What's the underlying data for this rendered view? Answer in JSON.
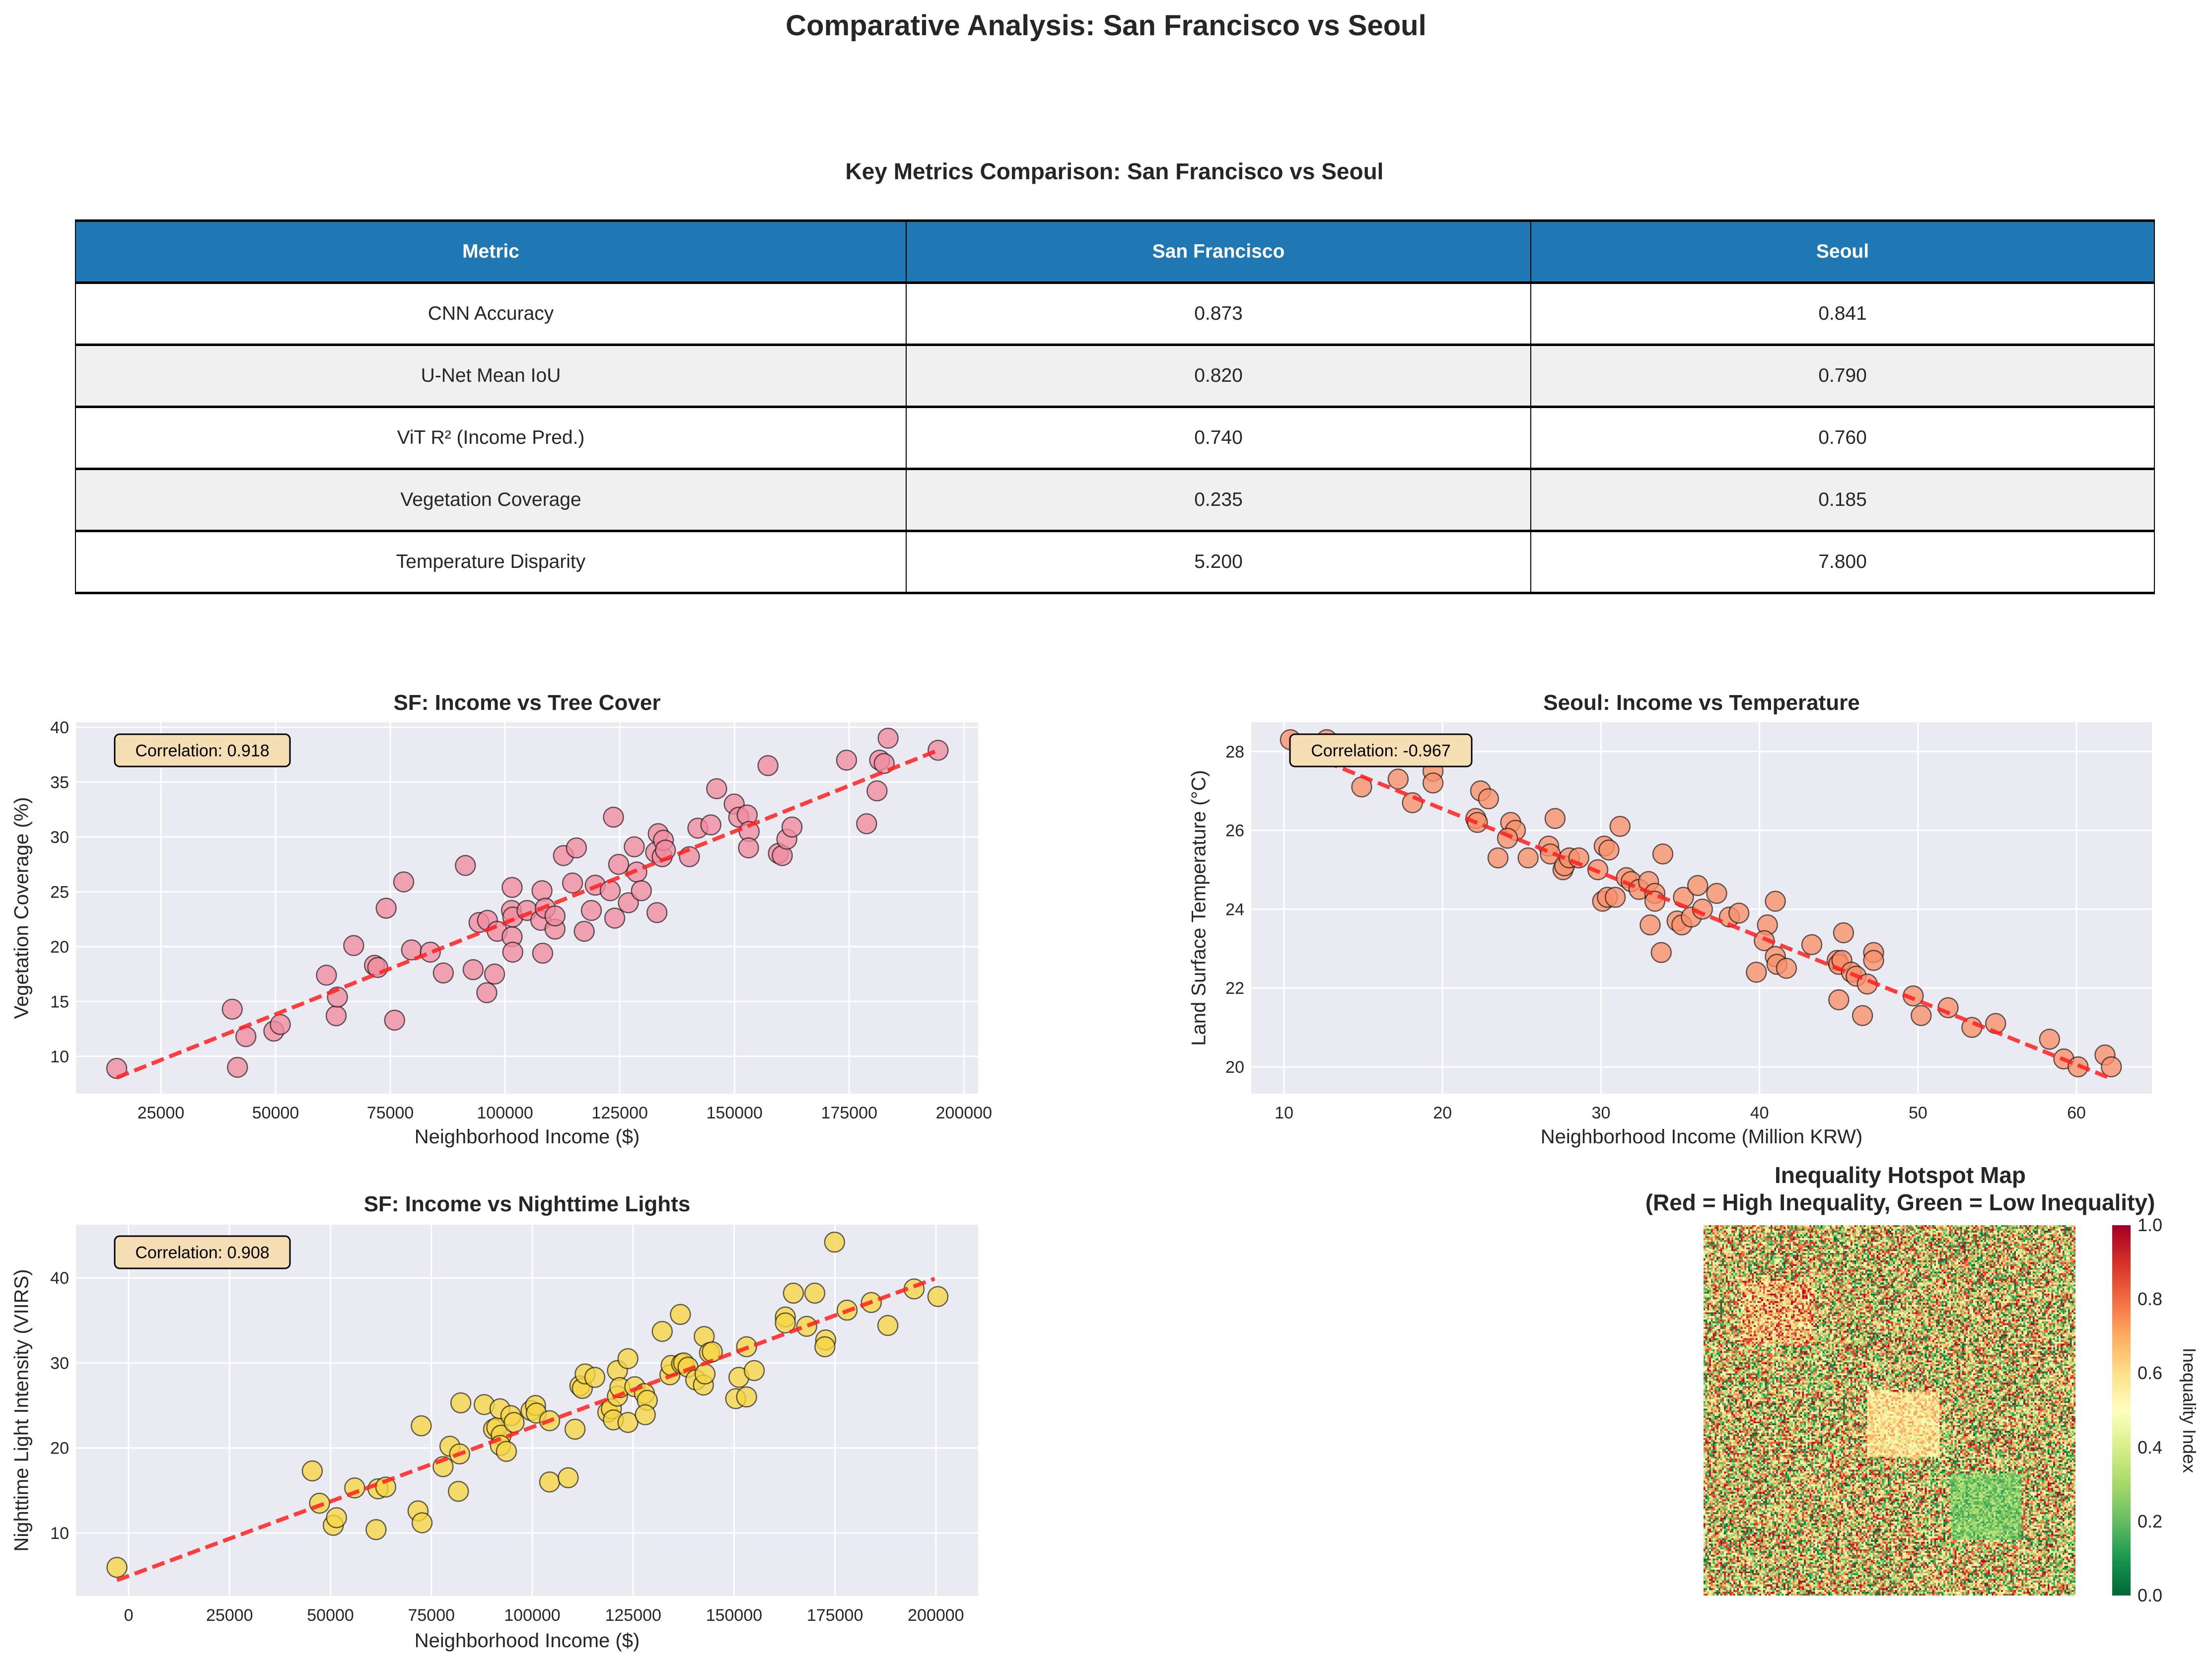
{
  "title": "Comparative Analysis: San Francisco vs Seoul",
  "table": {
    "title": "Key Metrics Comparison: San Francisco vs Seoul",
    "header_color": "#1f77b4",
    "headers": [
      "Metric",
      "San Francisco",
      "Seoul"
    ],
    "rows": [
      [
        "CNN Accuracy",
        "0.873",
        "0.841"
      ],
      [
        "U-Net Mean IoU",
        "0.820",
        "0.790"
      ],
      [
        "ViT R² (Income Pred.)",
        "0.740",
        "0.760"
      ],
      [
        "Vegetation Coverage",
        "0.235",
        "0.185"
      ],
      [
        "Temperature Disparity",
        "5.200",
        "7.800"
      ]
    ]
  },
  "chart_data": [
    {
      "type": "scatter",
      "title": "SF: Income vs Tree Cover",
      "xlabel": "Neighborhood Income ($)",
      "ylabel": "Vegetation Coverage (%)",
      "xlim": [
        6500,
        203100
      ],
      "ylim": [
        6.6,
        40.45
      ],
      "xticks": [
        25000,
        50000,
        75000,
        100000,
        125000,
        150000,
        175000,
        200000
      ],
      "yticks": [
        10,
        15,
        20,
        25,
        30,
        35,
        40
      ],
      "grid": true,
      "annotation": "Correlation: 0.918",
      "point_color": "#f08ca0",
      "trend_color": "#ff2020",
      "x": [
        15380,
        40560,
        41700,
        43530,
        49620,
        51030,
        61080,
        63200,
        63480,
        67020,
        71550,
        72260,
        74100,
        75940,
        77920,
        79620,
        83720,
        86550,
        91360,
        93050,
        94330,
        96170,
        96030,
        97730,
        98300,
        101400,
        101540,
        101540,
        101690,
        101690,
        104800,
        108060,
        108200,
        107780,
        108770,
        110890,
        110890,
        112730,
        114710,
        115560,
        117260,
        118810,
        119660,
        122920,
        123630,
        123910,
        124760,
        126880,
        128160,
        128720,
        129710,
        133110,
        133390,
        132830,
        134240,
        134520,
        134950,
        140180,
        142020,
        144850,
        146120,
        149940,
        150930,
        152770,
        153200,
        153060,
        157300,
        159570,
        160420,
        161410,
        162540,
        174420,
        178800,
        181070,
        181640,
        182630,
        183480,
        194370
      ],
      "y": [
        8.9,
        14.3,
        9.0,
        11.8,
        12.3,
        12.9,
        17.4,
        13.7,
        15.4,
        20.1,
        18.3,
        18.1,
        23.5,
        13.3,
        25.9,
        19.7,
        19.5,
        17.6,
        27.4,
        17.9,
        22.2,
        22.4,
        15.8,
        17.5,
        21.4,
        23.3,
        25.4,
        20.9,
        19.5,
        22.7,
        23.3,
        25.1,
        19.4,
        22.4,
        23.5,
        21.6,
        22.8,
        28.3,
        25.8,
        29.0,
        21.4,
        23.3,
        25.6,
        25.1,
        31.8,
        22.6,
        27.5,
        24.0,
        29.1,
        26.8,
        25.1,
        23.1,
        30.3,
        28.6,
        28.2,
        29.7,
        28.8,
        28.2,
        30.8,
        31.1,
        34.4,
        33.0,
        31.8,
        32.0,
        30.5,
        29.0,
        36.5,
        28.5,
        28.3,
        29.8,
        30.9,
        37.0,
        31.2,
        34.2,
        37.0,
        36.7,
        39.0,
        37.9
      ],
      "trendline": {
        "x": [
          15380,
          194370
        ],
        "y": [
          8.06,
          37.9
        ]
      }
    },
    {
      "type": "scatter",
      "title": "Seoul: Income vs Temperature",
      "xlabel": "Neighborhood Income (Million KRW)",
      "ylabel": "Land Surface Temperature (°C)",
      "xlim": [
        7.93,
        64.76
      ],
      "ylim": [
        19.32,
        28.74
      ],
      "xticks": [
        10,
        20,
        30,
        40,
        50,
        60
      ],
      "yticks": [
        20,
        22,
        24,
        26,
        28
      ],
      "grid": true,
      "annotation": "Correlation: -0.967",
      "point_color": "#f7906a",
      "trend_color": "#ff2020",
      "x": [
        10.4,
        12.7,
        14.9,
        17.2,
        18.1,
        19.4,
        19.4,
        22.4,
        22.9,
        22.1,
        22.2,
        23.5,
        24.3,
        24.6,
        24.1,
        25.4,
        26.7,
        26.8,
        27.1,
        27.6,
        27.7,
        28.0,
        28.6,
        29.8,
        30.2,
        30.5,
        30.1,
        30.4,
        30.9,
        31.2,
        31.6,
        31.9,
        32.4,
        33.0,
        33.1,
        33.4,
        33.4,
        33.8,
        33.9,
        34.8,
        35.2,
        35.1,
        35.7,
        36.1,
        36.4,
        37.3,
        38.1,
        38.7,
        39.8,
        40.5,
        40.3,
        41.0,
        41.0,
        41.1,
        41.7,
        43.3,
        44.9,
        45.0,
        45.0,
        45.3,
        45.2,
        45.8,
        46.1,
        46.5,
        46.8,
        47.2,
        47.2,
        49.7,
        50.2,
        51.9,
        53.4,
        54.9,
        58.3,
        59.2,
        60.1,
        61.8,
        62.2
      ],
      "y": [
        28.3,
        28.3,
        27.1,
        27.3,
        26.7,
        27.5,
        27.2,
        27.0,
        26.8,
        26.3,
        26.2,
        25.3,
        26.2,
        26.0,
        25.8,
        25.3,
        25.6,
        25.4,
        26.3,
        25.0,
        25.1,
        25.3,
        25.3,
        25.0,
        25.6,
        25.5,
        24.2,
        24.3,
        24.3,
        26.1,
        24.8,
        24.7,
        24.5,
        24.7,
        23.6,
        24.4,
        24.2,
        22.9,
        25.4,
        23.7,
        24.3,
        23.6,
        23.8,
        24.6,
        24.0,
        24.4,
        23.8,
        23.9,
        22.4,
        23.6,
        23.2,
        24.2,
        22.8,
        22.6,
        22.5,
        23.1,
        22.7,
        22.6,
        21.7,
        23.4,
        22.7,
        22.4,
        22.3,
        21.3,
        22.1,
        22.9,
        22.7,
        21.8,
        21.3,
        21.5,
        21.0,
        21.1,
        20.7,
        20.2,
        20.0,
        20.3,
        20.0
      ],
      "trendline": {
        "x": [
          10.4,
          62.2
        ],
        "y": [
          28.1,
          19.7
        ]
      }
    },
    {
      "type": "scatter",
      "title": "SF: Income vs Nighttime Lights",
      "xlabel": "Neighborhood Income ($)",
      "ylabel": "Nighttime Light Intensity (VIIRS)",
      "xlim": [
        -13050,
        210470
      ],
      "ylim": [
        2.59,
        46.25
      ],
      "xticks": [
        0,
        25000,
        50000,
        75000,
        100000,
        125000,
        150000,
        175000,
        200000
      ],
      "yticks": [
        10,
        20,
        30,
        40
      ],
      "grid": true,
      "annotation": "Correlation: 0.908",
      "point_color": "#f5d545",
      "trend_color": "#ff2020",
      "x": [
        -2900,
        45500,
        47300,
        50700,
        51500,
        56000,
        61300,
        61800,
        63700,
        71700,
        72700,
        72500,
        77900,
        79600,
        81700,
        82000,
        82300,
        88100,
        90400,
        91200,
        92000,
        92300,
        92100,
        93600,
        94700,
        95500,
        99700,
        100800,
        101000,
        104300,
        104300,
        108900,
        110600,
        111800,
        112400,
        113100,
        115500,
        118700,
        119600,
        120100,
        121100,
        121100,
        121700,
        123700,
        123700,
        125400,
        127800,
        128500,
        128000,
        132200,
        134100,
        134400,
        136700,
        137000,
        137500,
        138600,
        140500,
        142400,
        142600,
        142800,
        143900,
        144600,
        150400,
        151200,
        153100,
        153100,
        155000,
        162700,
        162700,
        164700,
        168000,
        170000,
        172700,
        172500,
        174900,
        178000,
        184000,
        188100,
        194600,
        200500
      ],
      "y": [
        5.96,
        17.3,
        13.5,
        10.9,
        11.8,
        15.3,
        10.4,
        15.2,
        15.4,
        12.6,
        11.2,
        22.6,
        17.8,
        20.2,
        14.9,
        19.3,
        25.3,
        25.1,
        22.2,
        22.4,
        24.6,
        21.5,
        20.3,
        19.6,
        23.8,
        23.0,
        24.4,
        25.0,
        24.1,
        23.2,
        16.0,
        16.5,
        22.2,
        27.3,
        27.0,
        28.7,
        28.3,
        24.2,
        24.6,
        23.3,
        26.1,
        29.1,
        27.1,
        23.0,
        30.5,
        27.2,
        26.4,
        25.6,
        23.9,
        33.7,
        28.6,
        29.7,
        35.7,
        29.9,
        30.0,
        29.5,
        28.0,
        27.4,
        33.1,
        28.7,
        31.2,
        31.3,
        25.8,
        28.3,
        26.0,
        31.9,
        29.1,
        35.4,
        34.7,
        38.2,
        34.3,
        38.2,
        32.7,
        31.9,
        44.2,
        36.2,
        37.1,
        34.4,
        38.7,
        37.8
      ],
      "trendline": {
        "x": [
          -2900,
          199700
        ],
        "y": [
          4.45,
          39.9
        ]
      }
    },
    {
      "type": "heatmap",
      "title_line1": "Inequality Hotspot Map",
      "title_line2": "(Red = High Inequality, Green = Low Inequality)",
      "colormap": "RdYlGn_r",
      "vmin": 0,
      "vmax": 1,
      "colorbar_label": "Inequality Index",
      "colorbar_ticks": [
        "0.0",
        "0.2",
        "0.4",
        "0.6",
        "0.8",
        "1.0"
      ],
      "grid_size": [
        200,
        200
      ],
      "base_range": [
        0,
        1
      ],
      "regions": [
        {
          "rows": [
            30,
            65
          ],
          "cols": [
            20,
            60
          ],
          "range": [
            0.3,
            1.0
          ]
        },
        {
          "rows": [
            90,
            125
          ],
          "cols": [
            88,
            127
          ],
          "range": [
            0.4,
            0.75
          ]
        },
        {
          "rows": [
            134,
            170
          ],
          "cols": [
            133,
            171
          ],
          "range": [
            0.12,
            0.38
          ]
        }
      ]
    }
  ]
}
